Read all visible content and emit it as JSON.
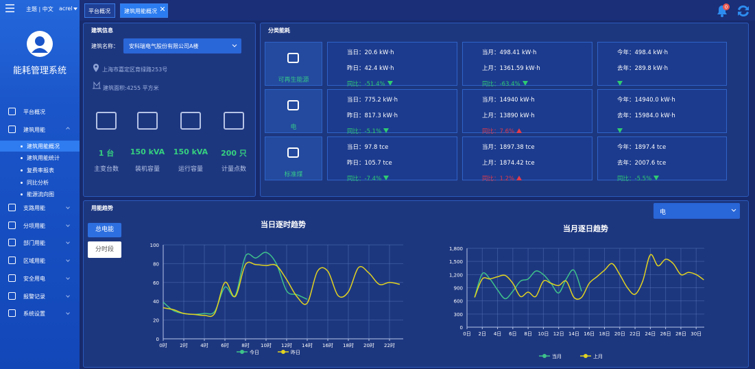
{
  "topbar": {
    "theme_lang": "主题 | 中文",
    "user": "acrel"
  },
  "system_name": "能耗管理系统",
  "menu": [
    {
      "label": "平台概况"
    },
    {
      "label": "建筑用能",
      "children": [
        "建筑用能概况",
        "建筑用能统计",
        "复费率报表",
        "同比分析",
        "能源流向图"
      ]
    },
    {
      "label": "支路用能"
    },
    {
      "label": "分项用能"
    },
    {
      "label": "部门用能"
    },
    {
      "label": "区域用能"
    },
    {
      "label": "安全用电"
    },
    {
      "label": "报警记录"
    },
    {
      "label": "系统设置"
    }
  ],
  "tabs": [
    "平台概况",
    "建筑用能概况"
  ],
  "notification_count": 0,
  "building_info": {
    "title": "建筑信息",
    "name_label": "建筑名称：",
    "name": "安科瑞电气股份有限公司A楼",
    "address": "上海市嘉定区育绿路253号",
    "area": "建筑面积:4255 平方米",
    "stats": [
      {
        "value": "1 台",
        "label": "主变台数"
      },
      {
        "value": "150 kVA",
        "label": "装机容量"
      },
      {
        "value": "150 kVA",
        "label": "运行容量"
      },
      {
        "value": "200 只",
        "label": "计量点数"
      }
    ]
  },
  "category_energy": {
    "title": "分类能耗",
    "rows": [
      {
        "name": "可再生能源",
        "cells": [
          {
            "lines": [
              "当日：20.6 kW·h",
              "昨日：42.4 kW·h"
            ],
            "compare": "同比：-51.4%",
            "trend": "down"
          },
          {
            "lines": [
              "当月：498.41 kW·h",
              "上月：1361.59 kW·h"
            ],
            "compare": "同比：-63.4%",
            "trend": "down"
          },
          {
            "lines": [
              "今年：498.4 kW·h",
              "去年：289.8 kW·h"
            ],
            "trend": "down"
          }
        ]
      },
      {
        "name": "电",
        "cells": [
          {
            "lines": [
              "当日：775.2 kW·h",
              "昨日：817.3 kW·h"
            ],
            "compare": "同比：-5.1%",
            "trend": "down"
          },
          {
            "lines": [
              "当月：14940 kW·h",
              "上月：13890 kW·h"
            ],
            "compare": "同比：7.6%",
            "trend": "up"
          },
          {
            "lines": [
              "今年：14940.0 kW·h",
              "去年：15984.0 kW·h"
            ],
            "trend": "down"
          }
        ]
      },
      {
        "name": "标准煤",
        "cells": [
          {
            "lines": [
              "当日：97.8 tce",
              "昨日：105.7 tce"
            ],
            "compare": "同比：-7.4%",
            "trend": "down"
          },
          {
            "lines": [
              "当月：1897.38 tce",
              "上月：1874.42 tce"
            ],
            "compare": "同比：1.2%",
            "trend": "up"
          },
          {
            "lines": [
              "今年：1897.4 tce",
              "去年：2007.6 tce"
            ],
            "compare": "同比：-5.5%",
            "trend": "down"
          }
        ]
      }
    ]
  },
  "trend": {
    "title": "用能趋势",
    "buttons": [
      "总电能",
      "分时段"
    ],
    "energy_select": "电"
  },
  "chart_data": [
    {
      "type": "line",
      "title": "当日逐时趋势",
      "categories": [
        "0时",
        null,
        "2时",
        null,
        "4时",
        null,
        "6时",
        null,
        "8时",
        null,
        "10时",
        null,
        "12时",
        null,
        "14时",
        null,
        "16时",
        null,
        "18时",
        null,
        "20时",
        null,
        "22时",
        null
      ],
      "series": [
        {
          "name": "今日",
          "color": "#3fc38a",
          "values": [
            39,
            30,
            27,
            26,
            27,
            29,
            55,
            46,
            88,
            86,
            92,
            80,
            51,
            47,
            42,
            null,
            null,
            null,
            null,
            null,
            null,
            null,
            null,
            null
          ]
        },
        {
          "name": "昨日",
          "color": "#e2d320",
          "values": [
            33,
            31,
            27,
            26,
            25,
            27,
            60,
            45,
            79,
            79,
            78,
            78,
            63,
            45,
            38,
            72,
            72,
            46,
            50,
            76,
            70,
            58,
            60,
            58
          ]
        }
      ],
      "ylim": [
        0,
        100
      ],
      "yticks": [
        0,
        20,
        40,
        60,
        80,
        100
      ],
      "grid": true,
      "legend": "bottom"
    },
    {
      "type": "line",
      "title": "当月逐日趋势",
      "categories": [
        "0日",
        null,
        "2日",
        null,
        "4日",
        null,
        "6日",
        null,
        "8日",
        null,
        "10日",
        null,
        "12日",
        null,
        "14日",
        null,
        "16日",
        null,
        "18日",
        null,
        "20日",
        null,
        "22日",
        null,
        "24日",
        null,
        "26日",
        null,
        "28日",
        null,
        "30日",
        null
      ],
      "series": [
        {
          "name": "当月",
          "color": "#3fc38a",
          "values": [
            null,
            680,
            1220,
            1100,
            850,
            650,
            820,
            1050,
            1100,
            1280,
            1200,
            1000,
            780,
            1100,
            1300,
            820,
            null,
            null,
            null,
            null,
            null,
            null,
            null,
            null,
            null,
            null,
            null,
            null,
            null,
            null,
            null,
            null
          ]
        },
        {
          "name": "上月",
          "color": "#e2d320",
          "values": [
            null,
            680,
            1100,
            1100,
            1150,
            1180,
            1000,
            700,
            800,
            700,
            1050,
            1000,
            950,
            1050,
            680,
            680,
            1000,
            1150,
            1300,
            1450,
            1200,
            900,
            750,
            1050,
            1650,
            1400,
            1550,
            1450,
            1200,
            1250,
            1200,
            1080
          ]
        }
      ],
      "ylim": [
        0,
        1800
      ],
      "yticks": [
        0,
        300,
        600,
        900,
        {
          "value": 1200,
          "label": "1,200"
        },
        {
          "value": 1500,
          "label": "1,500"
        },
        {
          "value": 1800,
          "label": "1,800"
        }
      ],
      "grid": true,
      "legend": "bottom"
    }
  ]
}
